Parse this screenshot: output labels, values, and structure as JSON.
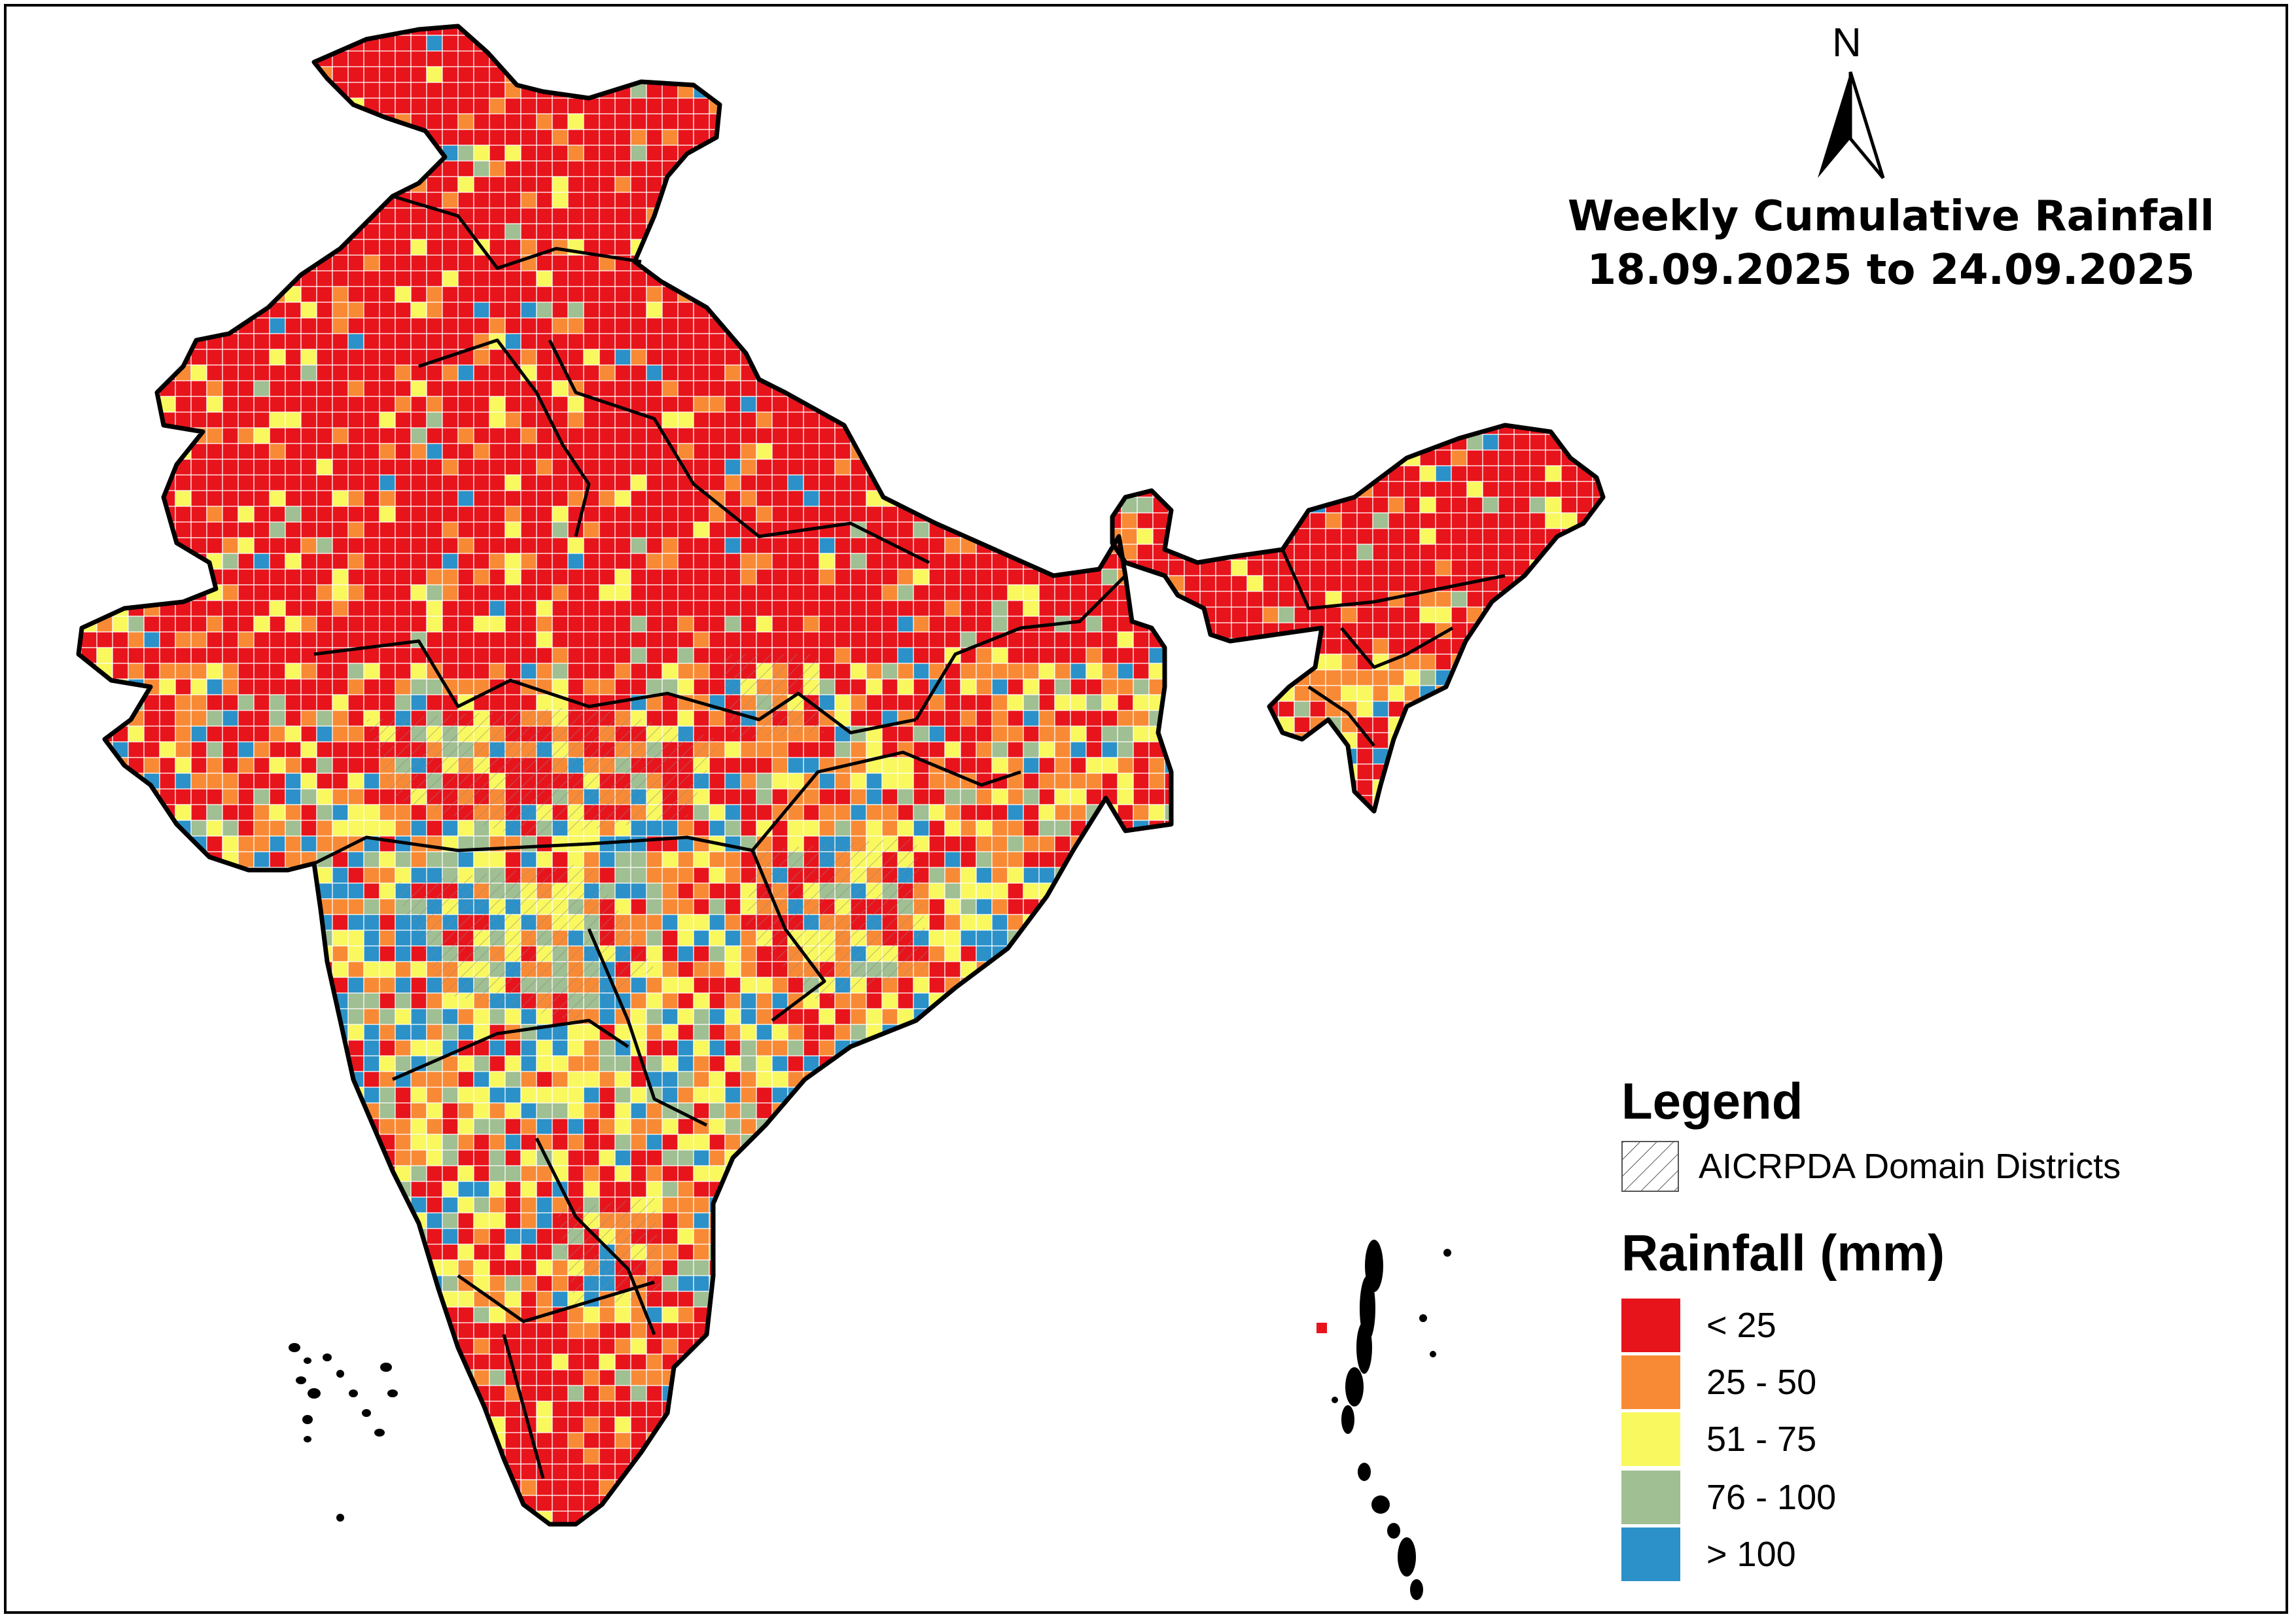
{
  "map": {
    "north_label": "N",
    "title_line1": "Weekly Cumulative Rainfall",
    "title_line2": "18.09.2025 to 24.09.2025"
  },
  "legend": {
    "heading": "Legend",
    "domain_label": "AICRPDA Domain Districts",
    "rainfall_heading": "Rainfall (mm)",
    "classes": [
      {
        "label": "< 25",
        "color": "#e8141c"
      },
      {
        "label": "25 - 50",
        "color": "#f98a35"
      },
      {
        "label": "51 - 75",
        "color": "#f9f85e"
      },
      {
        "label": "76 - 100",
        "color": "#a0bf92"
      },
      {
        "label": "> 100",
        "color": "#2b91c8"
      }
    ]
  }
}
